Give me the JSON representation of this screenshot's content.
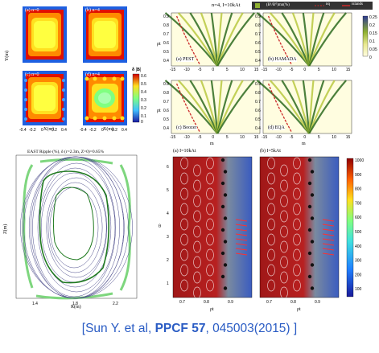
{
  "top_left": {
    "subpanels": [
      {
        "label": "(a) n=0"
      },
      {
        "label": "(b) n=4"
      },
      {
        "label": "(c) n=0"
      },
      {
        "label": "(d) n=4"
      }
    ],
    "colorbar_title": "δ |B|",
    "y_label": "Y(m)",
    "x_label": "X(m)",
    "x_ticks": [
      "-0.4",
      "-0.2",
      "0",
      "0.2",
      "0.4",
      "-0.4",
      "-0.2",
      "0",
      "0.2",
      "0.4"
    ]
  },
  "top_right": {
    "title": "n=4, I=10kAt",
    "legend": [
      "(B¹/B⁰)mn(%)",
      "nq",
      "islands"
    ],
    "subpanels": [
      {
        "label": "(a) PEST"
      },
      {
        "label": "(b) HAMADA"
      },
      {
        "label": "(c) Boozer"
      },
      {
        "label": "(d) EQA"
      }
    ],
    "y_label": "ρt",
    "x_label": "m",
    "x_ticks": [
      "-15",
      "-10",
      "-5",
      "0",
      "5",
      "10",
      "15"
    ],
    "y_ticks": [
      "0.9",
      "0.8",
      "0.7",
      "0.6",
      "0.5",
      "0.4"
    ],
    "colorbar_ticks": [
      "0.25",
      "0.2",
      "0.15",
      "0.1",
      "0.05",
      "0"
    ],
    "colors": {
      "low": "#fffde0",
      "mid": "#b8c840",
      "high": "#2d6a1e",
      "nq": "#cc2a2a",
      "legend_bg": "#333333"
    }
  },
  "bottom_left": {
    "title": "EAST Ripple (%), δ (r=2.3m, Z=0)=0.65%",
    "y_label": "Z(m)",
    "x_label": "R(m)",
    "x_ticks": [
      "1.4",
      "1.8",
      "2.2"
    ]
  },
  "bottom_right": {
    "panel_a_title": "(a) I=10kAt",
    "panel_b_title": "(b) I=5kAt",
    "y_label": "θ",
    "x_label": "ρt",
    "y_ticks": [
      "6",
      "5",
      "4",
      "3",
      "2",
      "1"
    ],
    "x_ticks_a": [
      "0.7",
      "0.8",
      "0.9"
    ],
    "x_ticks_b": [
      "0.7",
      "0.8",
      "0.9"
    ],
    "colorbar_ticks": [
      "1000",
      "900",
      "800",
      "700",
      "600",
      "500",
      "400",
      "300",
      "200",
      "100"
    ]
  },
  "caption": {
    "prefix": "[Sun Y. et al, ",
    "journal": "PPCF 57",
    "suffix": ", 045003(2015) ]"
  }
}
